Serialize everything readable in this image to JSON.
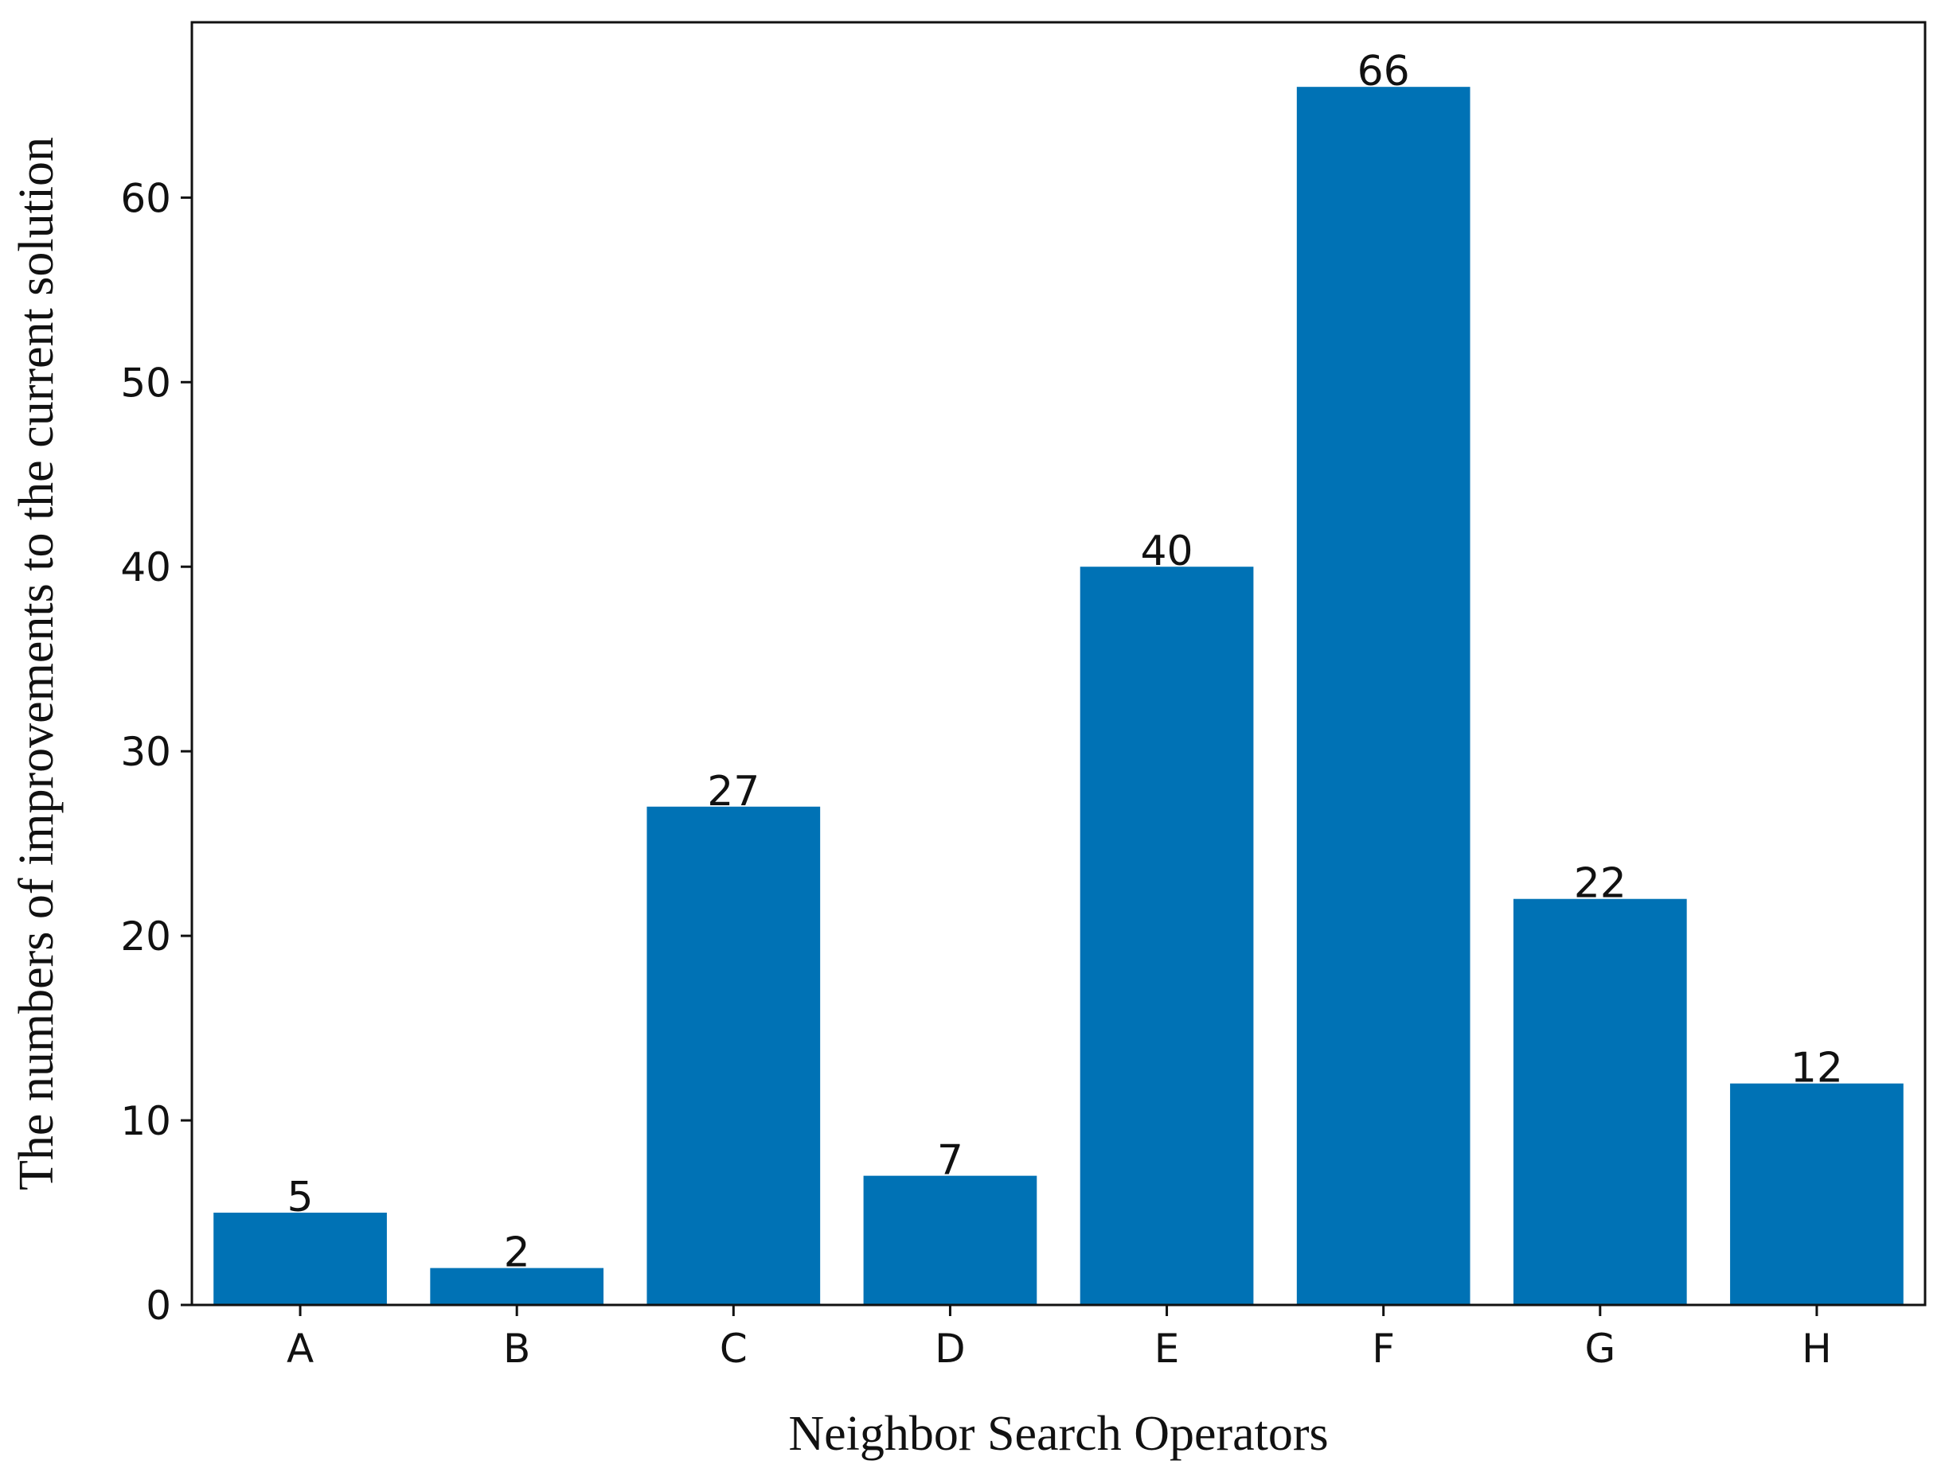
{
  "chart_data": {
    "type": "bar",
    "title": "",
    "xlabel": "Neighbor Search Operators",
    "ylabel": "The numbers of improvements to the current solution",
    "categories": [
      "A",
      "B",
      "C",
      "D",
      "E",
      "F",
      "G",
      "H"
    ],
    "values": [
      5,
      2,
      27,
      7,
      40,
      66,
      22,
      12
    ],
    "data_labels": [
      "5",
      "2",
      "27",
      "7",
      "40",
      "66",
      "22",
      "12"
    ],
    "ylim": [
      0,
      69.5
    ],
    "yticks": [
      0,
      10,
      20,
      30,
      40,
      50,
      60
    ],
    "grid": false,
    "bar_color": "#0072b5"
  }
}
